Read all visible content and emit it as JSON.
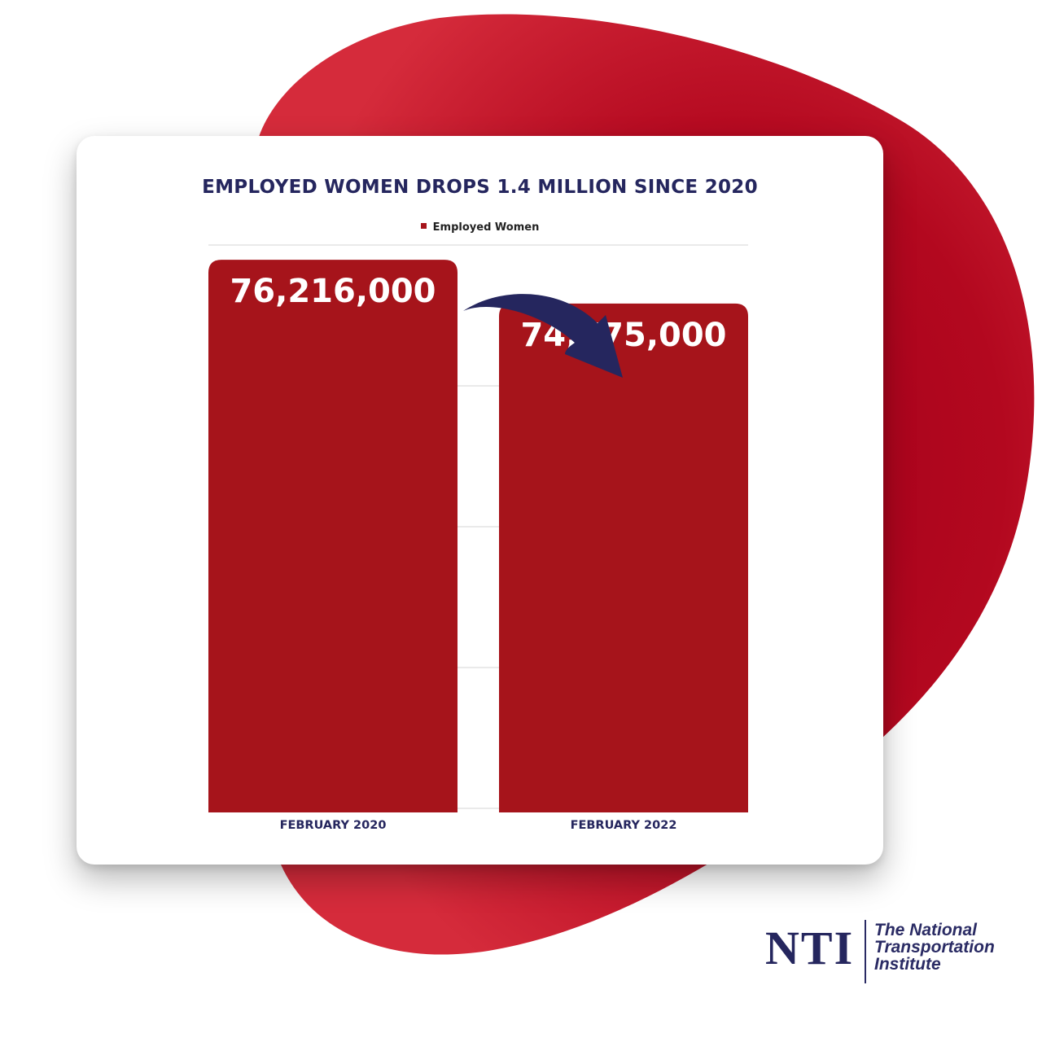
{
  "colors": {
    "bar": "#a6141b",
    "accent_navy": "#25265e",
    "blob_light": "#d62a3a",
    "blob_dark": "#a5001a"
  },
  "chart_data": {
    "type": "bar",
    "title": "EMPLOYED WOMEN DROPS 1.4 MILLION SINCE 2020",
    "legend": [
      "Employed Women"
    ],
    "legend_position": "top",
    "grid": true,
    "categories": [
      "FEBRUARY 2020",
      "FEBRUARY 2022"
    ],
    "series": [
      {
        "name": "Employed Women",
        "values": [
          76216000,
          74775000
        ]
      }
    ],
    "data_labels": [
      "76,216,000",
      "74,775,000"
    ],
    "ylim": [
      58000000,
      77400000
    ],
    "annotation": {
      "type": "curved-arrow",
      "from": "FEBRUARY 2020",
      "to": "FEBRUARY 2022",
      "meaning": "decrease"
    }
  },
  "logo": {
    "letters": "NTI",
    "lines": [
      "The National",
      "Transportation",
      "Institute"
    ]
  }
}
